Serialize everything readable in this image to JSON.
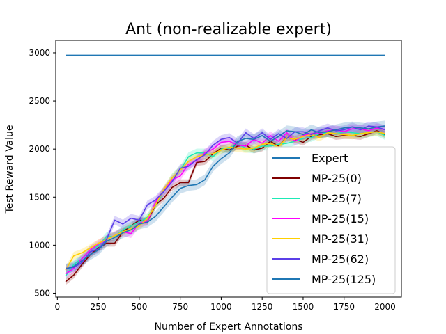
{
  "chart_data": {
    "type": "line",
    "title": "Ant (non-realizable expert)",
    "xlabel": "Number of Expert Annotations",
    "ylabel": "Test Reward Value",
    "xlim": [
      -10,
      2100
    ],
    "ylim": [
      460,
      3130
    ],
    "xticks": [
      0,
      250,
      500,
      750,
      1000,
      1250,
      1500,
      1750,
      2000
    ],
    "yticks": [
      500,
      1000,
      1500,
      2000,
      2500,
      3000
    ],
    "legend_position": "lower-right",
    "grid": false,
    "x": [
      50,
      100,
      150,
      200,
      250,
      300,
      350,
      400,
      450,
      500,
      550,
      600,
      650,
      700,
      750,
      800,
      850,
      900,
      950,
      1000,
      1050,
      1100,
      1150,
      1200,
      1250,
      1300,
      1350,
      1400,
      1450,
      1500,
      1550,
      1600,
      1650,
      1700,
      1750,
      1800,
      1850,
      1900,
      1950,
      2000
    ],
    "series": [
      {
        "name": "Expert",
        "color": "#1f77b4",
        "band": 0,
        "x": [
          50,
          2000
        ],
        "values": [
          2975,
          2975
        ]
      },
      {
        "name": "MP-25(0)",
        "color": "#800000",
        "band": 35,
        "values": [
          620,
          690,
          800,
          900,
          970,
          1020,
          1020,
          1140,
          1200,
          1260,
          1250,
          1420,
          1490,
          1600,
          1650,
          1650,
          1860,
          1870,
          1950,
          2010,
          1990,
          2030,
          2040,
          1990,
          2010,
          2080,
          2030,
          2120,
          2100,
          2070,
          2130,
          2150,
          2160,
          2130,
          2140,
          2140,
          2130,
          2160,
          2190,
          2150
        ]
      },
      {
        "name": "MP-25(7)",
        "color": "#1de9b6",
        "band": 45,
        "values": [
          680,
          800,
          860,
          950,
          990,
          1090,
          1090,
          1160,
          1200,
          1240,
          1290,
          1420,
          1560,
          1700,
          1780,
          1920,
          1960,
          1960,
          1920,
          2000,
          2010,
          2050,
          2010,
          2000,
          2030,
          2030,
          2050,
          2060,
          2080,
          2110,
          2120,
          2160,
          2170,
          2160,
          2180,
          2170,
          2160,
          2170,
          2180,
          2140
        ]
      },
      {
        "name": "MP-25(15)",
        "color": "#ff00ff",
        "band": 45,
        "values": [
          700,
          760,
          860,
          950,
          1010,
          1060,
          1100,
          1140,
          1120,
          1230,
          1250,
          1450,
          1560,
          1680,
          1720,
          1840,
          1880,
          1960,
          2000,
          2070,
          2080,
          2040,
          2030,
          2100,
          2060,
          2140,
          2080,
          2170,
          2080,
          2140,
          2160,
          2160,
          2190,
          2200,
          2180,
          2210,
          2210,
          2190,
          2220,
          2200
        ]
      },
      {
        "name": "MP-25(31)",
        "color": "#ffd000",
        "band": 40,
        "values": [
          740,
          890,
          920,
          970,
          1020,
          1060,
          1100,
          1140,
          1170,
          1200,
          1280,
          1420,
          1580,
          1700,
          1780,
          1870,
          1920,
          1940,
          1950,
          1990,
          2020,
          2010,
          2000,
          2010,
          2050,
          2060,
          2020,
          2120,
          2100,
          2130,
          2150,
          2120,
          2170,
          2160,
          2150,
          2140,
          2160,
          2170,
          2180,
          2160
        ]
      },
      {
        "name": "MP-25(62)",
        "color": "#5b3fe8",
        "band": 45,
        "values": [
          760,
          770,
          820,
          930,
          960,
          1060,
          1260,
          1220,
          1280,
          1260,
          1420,
          1470,
          1560,
          1660,
          1800,
          1820,
          1890,
          1940,
          2040,
          2100,
          2120,
          2060,
          2170,
          2110,
          2170,
          2100,
          2160,
          2110,
          2180,
          2180,
          2150,
          2190,
          2220,
          2190,
          2200,
          2230,
          2200,
          2240,
          2230,
          2200
        ]
      },
      {
        "name": "MP-25(125)",
        "color": "#1f77b4",
        "band": 55,
        "values": [
          750,
          780,
          840,
          900,
          950,
          1040,
          1080,
          1130,
          1160,
          1220,
          1240,
          1300,
          1400,
          1500,
          1590,
          1620,
          1630,
          1680,
          1820,
          1900,
          1960,
          2080,
          2110,
          2100,
          2140,
          2080,
          2130,
          2190,
          2180,
          2150,
          2200,
          2170,
          2180,
          2200,
          2220,
          2230,
          2220,
          2210,
          2230,
          2240
        ]
      }
    ]
  }
}
